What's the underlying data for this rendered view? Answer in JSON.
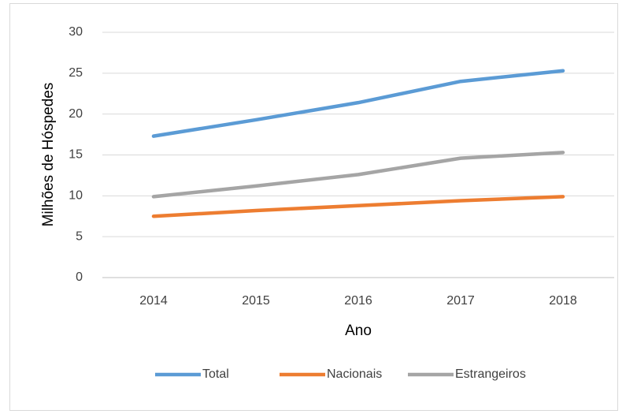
{
  "chart_data": {
    "type": "line",
    "categories": [
      "2014",
      "2015",
      "2016",
      "2017",
      "2018"
    ],
    "series": [
      {
        "name": "Total",
        "color": "#5b9bd5",
        "values": [
          17.3,
          19.3,
          21.4,
          24.0,
          25.3
        ]
      },
      {
        "name": "Nacionais",
        "color": "#ed7d31",
        "values": [
          7.5,
          8.2,
          8.8,
          9.4,
          9.9
        ]
      },
      {
        "name": "Estrangeiros",
        "color": "#a5a5a5",
        "values": [
          9.9,
          11.2,
          12.6,
          14.6,
          15.3
        ]
      }
    ],
    "ylim": [
      0,
      30
    ],
    "yticks": [
      0,
      5,
      10,
      15,
      20,
      25,
      30
    ],
    "grid": true,
    "xlabel": "Ano",
    "ylabel": "Milhões de Hóspedes",
    "legend": "bottom"
  }
}
